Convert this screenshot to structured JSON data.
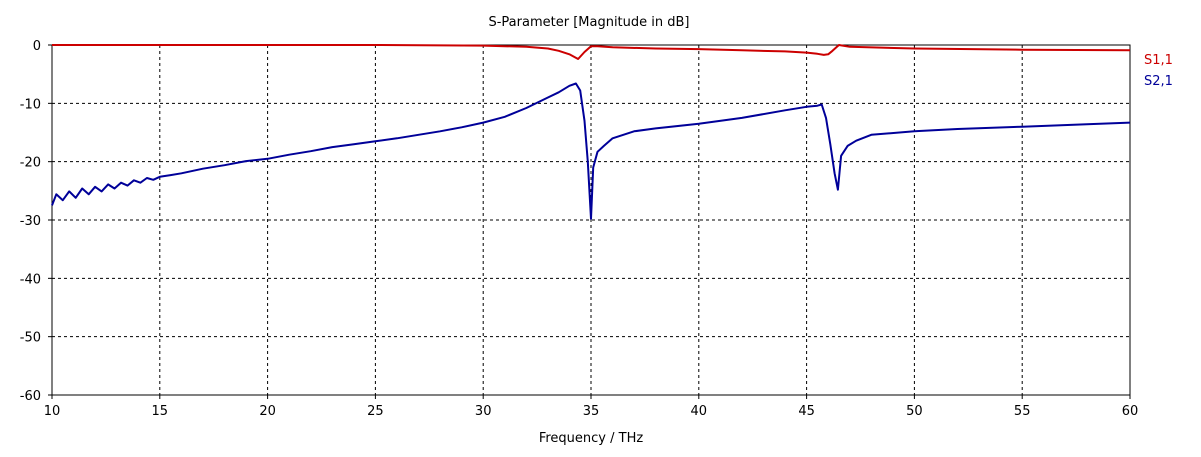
{
  "chart_data": {
    "type": "line",
    "title": "S-Parameter [Magnitude in dB]",
    "xlabel": "Frequency / THz",
    "ylabel": "",
    "xlim": [
      10,
      60
    ],
    "ylim": [
      -60,
      0
    ],
    "xticks": [
      10,
      15,
      20,
      25,
      30,
      35,
      40,
      45,
      50,
      55,
      60
    ],
    "yticks": [
      0,
      -10,
      -20,
      -30,
      -40,
      -50,
      -60
    ],
    "grid": true,
    "legend_position": "right",
    "series": [
      {
        "name": "S1,1",
        "color": "#cc0000",
        "x": [
          10,
          15,
          20,
          25,
          30,
          32,
          33,
          33.5,
          34,
          34.4,
          34.7,
          35,
          35.3,
          36,
          38,
          40,
          42,
          44,
          45,
          45.5,
          45.8,
          46,
          46.2,
          46.5,
          47,
          50,
          55,
          60
        ],
        "y": [
          0,
          0,
          0,
          0,
          -0.1,
          -0.3,
          -0.6,
          -1.0,
          -1.6,
          -2.4,
          -1.2,
          -0.2,
          -0.2,
          -0.4,
          -0.6,
          -0.7,
          -0.9,
          -1.1,
          -1.3,
          -1.5,
          -1.7,
          -1.6,
          -1.0,
          0,
          -0.3,
          -0.6,
          -0.8,
          -0.9
        ]
      },
      {
        "name": "S2,1",
        "color": "#000099",
        "x": [
          10,
          10.2,
          10.5,
          10.8,
          11.1,
          11.4,
          11.7,
          12.0,
          12.3,
          12.6,
          12.9,
          13.2,
          13.5,
          13.8,
          14.1,
          14.4,
          14.7,
          15.0,
          15.5,
          16,
          17,
          18,
          19,
          20,
          21,
          22,
          23,
          24,
          25,
          26,
          27,
          28,
          29,
          30,
          31,
          32,
          33,
          33.5,
          34,
          34.3,
          34.5,
          34.7,
          34.85,
          35.0,
          35.1,
          35.3,
          35.6,
          36,
          37,
          38,
          40,
          42,
          44,
          45,
          45.5,
          45.7,
          45.9,
          46.1,
          46.3,
          46.45,
          46.6,
          46.9,
          47.3,
          48,
          50,
          52,
          55,
          58,
          60
        ],
        "y": [
          -27.5,
          -25.6,
          -26.6,
          -25.1,
          -26.2,
          -24.6,
          -25.6,
          -24.3,
          -25.1,
          -23.9,
          -24.6,
          -23.6,
          -24.1,
          -23.2,
          -23.6,
          -22.8,
          -23.1,
          -22.6,
          -22.3,
          -22.0,
          -21.2,
          -20.6,
          -19.9,
          -19.5,
          -18.8,
          -18.2,
          -17.5,
          -17.0,
          -16.5,
          -16.0,
          -15.4,
          -14.8,
          -14.1,
          -13.3,
          -12.3,
          -10.8,
          -9.0,
          -8.1,
          -7.0,
          -6.6,
          -7.8,
          -13.0,
          -20.0,
          -29.8,
          -21.0,
          -18.3,
          -17.3,
          -16.0,
          -14.8,
          -14.3,
          -13.5,
          -12.5,
          -11.2,
          -10.6,
          -10.4,
          -10.2,
          -12.5,
          -17.0,
          -22.0,
          -24.8,
          -19.0,
          -17.3,
          -16.4,
          -15.4,
          -14.8,
          -14.4,
          -14.0,
          -13.6,
          -13.3
        ]
      }
    ]
  }
}
